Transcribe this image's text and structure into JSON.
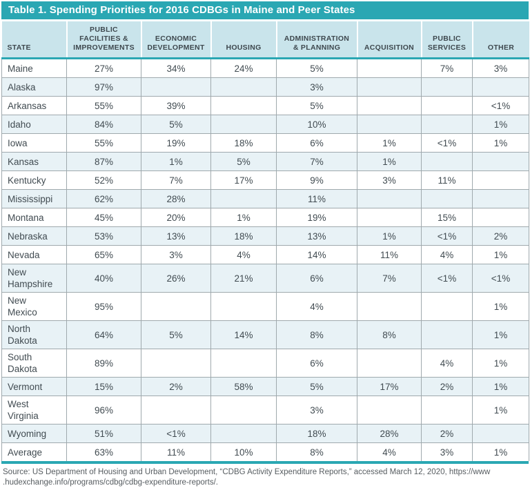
{
  "page": {
    "title_bar": "Table 1. Spending Priorities for 2016 CDBGs in Maine and Peer States",
    "source_line1": "Source: US Department of Housing and Urban Development, “CDBG Activity Expenditure Reports,” accessed March 12, 2020, https://www",
    "source_line2": ".hudexchange.info/programs/cdbg/cdbg-expenditure-reports/."
  },
  "colors": {
    "teal": "#2AA7B3",
    "header_bg": "#C9E4EB",
    "stripe_bg": "#E8F2F6",
    "border_gray": "#9FA9AD",
    "text_dark": "#414B51"
  },
  "chart_data": {
    "type": "table",
    "title": "Table 1. Spending Priorities for 2016 CDBGs in Maine and Peer States",
    "columns": [
      "STATE",
      "PUBLIC\nFACILITIES &\nIMPROVEMENTS",
      "ECONOMIC\nDEVELOPMENT",
      "HOUSING",
      "ADMINISTRATION\n& PLANNING",
      "ACQUISITION",
      "PUBLIC\nSERVICES",
      "OTHER"
    ],
    "rows": [
      [
        "Maine",
        "27%",
        "34%",
        "24%",
        "5%",
        "",
        "7%",
        "3%"
      ],
      [
        "Alaska",
        "97%",
        "",
        "",
        "3%",
        "",
        "",
        ""
      ],
      [
        "Arkansas",
        "55%",
        "39%",
        "",
        "5%",
        "",
        "",
        "<1%"
      ],
      [
        "Idaho",
        "84%",
        "5%",
        "",
        "10%",
        "",
        "",
        "1%"
      ],
      [
        "Iowa",
        "55%",
        "19%",
        "18%",
        "6%",
        "1%",
        "<1%",
        "1%"
      ],
      [
        "Kansas",
        "87%",
        "1%",
        "5%",
        "7%",
        "1%",
        "",
        ""
      ],
      [
        "Kentucky",
        "52%",
        "7%",
        "17%",
        "9%",
        "3%",
        "11%",
        ""
      ],
      [
        "Mississippi",
        "62%",
        "28%",
        "",
        "11%",
        "",
        "",
        ""
      ],
      [
        "Montana",
        "45%",
        "20%",
        "1%",
        "19%",
        "",
        "15%",
        ""
      ],
      [
        "Nebraska",
        "53%",
        "13%",
        "18%",
        "13%",
        "1%",
        "<1%",
        "2%"
      ],
      [
        "Nevada",
        "65%",
        "3%",
        "4%",
        "14%",
        "11%",
        "4%",
        "1%"
      ],
      [
        "New\nHampshire",
        "40%",
        "26%",
        "21%",
        "6%",
        "7%",
        "<1%",
        "<1%"
      ],
      [
        "New\nMexico",
        "95%",
        "",
        "",
        "4%",
        "",
        "",
        "1%"
      ],
      [
        "North\nDakota",
        "64%",
        "5%",
        "14%",
        "8%",
        "8%",
        "",
        "1%"
      ],
      [
        "South\nDakota",
        "89%",
        "",
        "",
        "6%",
        "",
        "4%",
        "1%"
      ],
      [
        "Vermont",
        "15%",
        "2%",
        "58%",
        "5%",
        "17%",
        "2%",
        "1%"
      ],
      [
        "West\nVirginia",
        "96%",
        "",
        "",
        "3%",
        "",
        "",
        "1%"
      ],
      [
        "Wyoming",
        "51%",
        "<1%",
        "",
        "18%",
        "28%",
        "2%",
        ""
      ],
      [
        "Average",
        "63%",
        "11%",
        "10%",
        "8%",
        "4%",
        "3%",
        "1%"
      ]
    ]
  }
}
